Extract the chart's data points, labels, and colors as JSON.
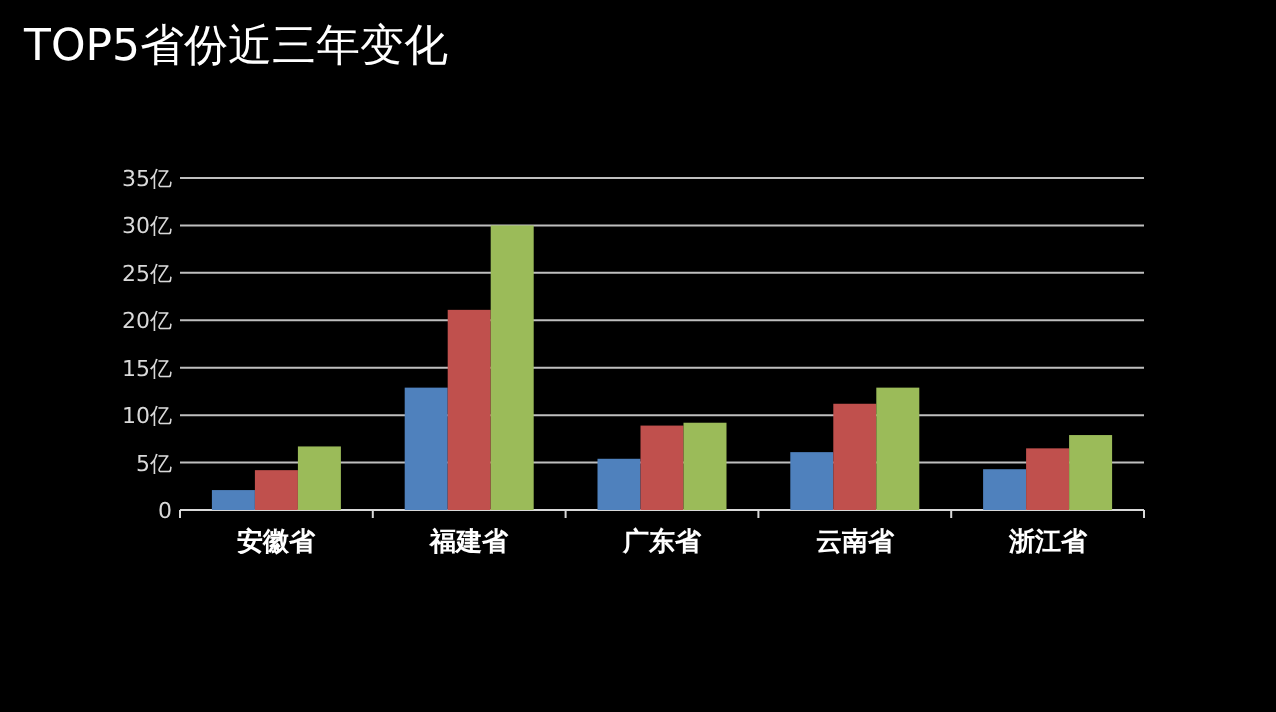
{
  "chart_data": {
    "type": "bar",
    "title": "TOP5省份近三年变化",
    "categories": [
      "安徽省",
      "福建省",
      "广东省",
      "云南省",
      "浙江省"
    ],
    "series": [
      {
        "color": "#4f81bd",
        "values": [
          2.1,
          12.9,
          5.4,
          6.1,
          4.3
        ]
      },
      {
        "color": "#c0504d",
        "values": [
          4.2,
          21.1,
          8.9,
          11.2,
          6.5
        ]
      },
      {
        "color": "#9bbb59",
        "values": [
          6.7,
          30.0,
          9.2,
          12.9,
          7.9
        ]
      }
    ],
    "ylim": [
      0,
      35
    ],
    "yticks": [
      0,
      {
        "value": 5,
        "label": "5亿"
      },
      {
        "value": 10,
        "label": "10亿"
      },
      {
        "value": 15,
        "label": "15亿"
      },
      {
        "value": 20,
        "label": "20亿"
      },
      {
        "value": 25,
        "label": "25亿"
      },
      {
        "value": 30,
        "label": "30亿"
      },
      {
        "value": 35,
        "label": "35亿"
      }
    ],
    "grid": "y"
  }
}
